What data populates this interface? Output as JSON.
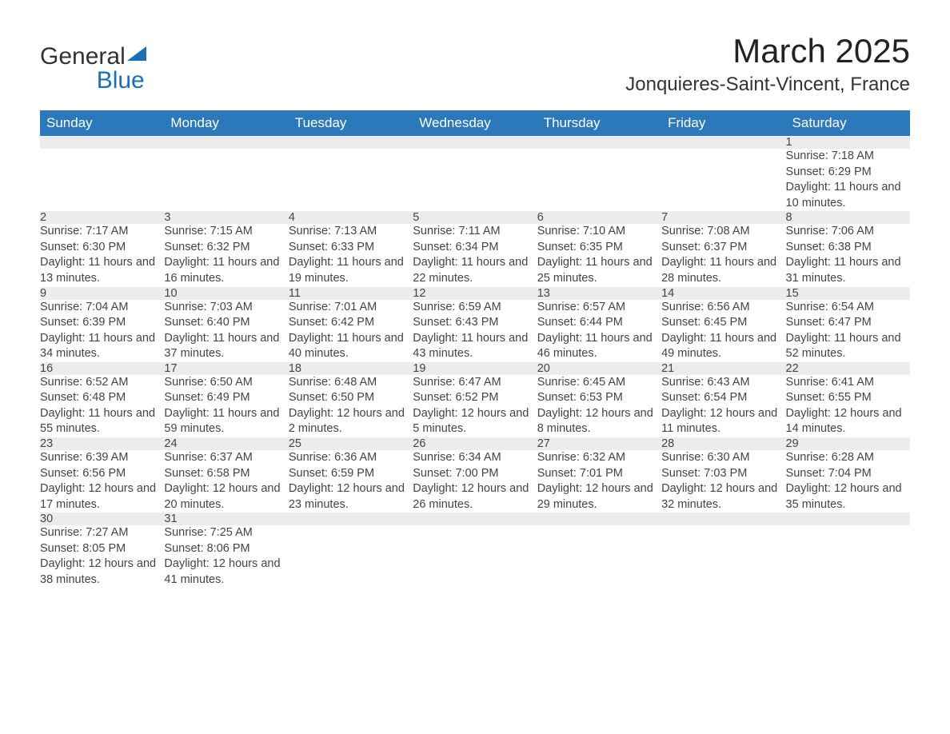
{
  "logo": {
    "text1": "General",
    "text2": "Blue"
  },
  "title": "March 2025",
  "subtitle": "Jonquieres-Saint-Vincent, France",
  "colors": {
    "header_bg": "#2b78bb",
    "header_text": "#ffffff",
    "row_border": "#2b78bb",
    "daynum_bg": "#ececec",
    "body_text": "#444444",
    "logo_dark": "#333333",
    "logo_blue": "#1a6fb7"
  },
  "typography": {
    "title_fontsize": 42,
    "subtitle_fontsize": 24,
    "header_fontsize": 17,
    "daynum_fontsize": 16,
    "body_fontsize": 14.5,
    "logo_fontsize": 30
  },
  "weekdays": [
    "Sunday",
    "Monday",
    "Tuesday",
    "Wednesday",
    "Thursday",
    "Friday",
    "Saturday"
  ],
  "weeks": [
    [
      null,
      null,
      null,
      null,
      null,
      null,
      {
        "n": "1",
        "sunrise": "7:18 AM",
        "sunset": "6:29 PM",
        "daylight": "11 hours and 10 minutes."
      }
    ],
    [
      {
        "n": "2",
        "sunrise": "7:17 AM",
        "sunset": "6:30 PM",
        "daylight": "11 hours and 13 minutes."
      },
      {
        "n": "3",
        "sunrise": "7:15 AM",
        "sunset": "6:32 PM",
        "daylight": "11 hours and 16 minutes."
      },
      {
        "n": "4",
        "sunrise": "7:13 AM",
        "sunset": "6:33 PM",
        "daylight": "11 hours and 19 minutes."
      },
      {
        "n": "5",
        "sunrise": "7:11 AM",
        "sunset": "6:34 PM",
        "daylight": "11 hours and 22 minutes."
      },
      {
        "n": "6",
        "sunrise": "7:10 AM",
        "sunset": "6:35 PM",
        "daylight": "11 hours and 25 minutes."
      },
      {
        "n": "7",
        "sunrise": "7:08 AM",
        "sunset": "6:37 PM",
        "daylight": "11 hours and 28 minutes."
      },
      {
        "n": "8",
        "sunrise": "7:06 AM",
        "sunset": "6:38 PM",
        "daylight": "11 hours and 31 minutes."
      }
    ],
    [
      {
        "n": "9",
        "sunrise": "7:04 AM",
        "sunset": "6:39 PM",
        "daylight": "11 hours and 34 minutes."
      },
      {
        "n": "10",
        "sunrise": "7:03 AM",
        "sunset": "6:40 PM",
        "daylight": "11 hours and 37 minutes."
      },
      {
        "n": "11",
        "sunrise": "7:01 AM",
        "sunset": "6:42 PM",
        "daylight": "11 hours and 40 minutes."
      },
      {
        "n": "12",
        "sunrise": "6:59 AM",
        "sunset": "6:43 PM",
        "daylight": "11 hours and 43 minutes."
      },
      {
        "n": "13",
        "sunrise": "6:57 AM",
        "sunset": "6:44 PM",
        "daylight": "11 hours and 46 minutes."
      },
      {
        "n": "14",
        "sunrise": "6:56 AM",
        "sunset": "6:45 PM",
        "daylight": "11 hours and 49 minutes."
      },
      {
        "n": "15",
        "sunrise": "6:54 AM",
        "sunset": "6:47 PM",
        "daylight": "11 hours and 52 minutes."
      }
    ],
    [
      {
        "n": "16",
        "sunrise": "6:52 AM",
        "sunset": "6:48 PM",
        "daylight": "11 hours and 55 minutes."
      },
      {
        "n": "17",
        "sunrise": "6:50 AM",
        "sunset": "6:49 PM",
        "daylight": "11 hours and 59 minutes."
      },
      {
        "n": "18",
        "sunrise": "6:48 AM",
        "sunset": "6:50 PM",
        "daylight": "12 hours and 2 minutes."
      },
      {
        "n": "19",
        "sunrise": "6:47 AM",
        "sunset": "6:52 PM",
        "daylight": "12 hours and 5 minutes."
      },
      {
        "n": "20",
        "sunrise": "6:45 AM",
        "sunset": "6:53 PM",
        "daylight": "12 hours and 8 minutes."
      },
      {
        "n": "21",
        "sunrise": "6:43 AM",
        "sunset": "6:54 PM",
        "daylight": "12 hours and 11 minutes."
      },
      {
        "n": "22",
        "sunrise": "6:41 AM",
        "sunset": "6:55 PM",
        "daylight": "12 hours and 14 minutes."
      }
    ],
    [
      {
        "n": "23",
        "sunrise": "6:39 AM",
        "sunset": "6:56 PM",
        "daylight": "12 hours and 17 minutes."
      },
      {
        "n": "24",
        "sunrise": "6:37 AM",
        "sunset": "6:58 PM",
        "daylight": "12 hours and 20 minutes."
      },
      {
        "n": "25",
        "sunrise": "6:36 AM",
        "sunset": "6:59 PM",
        "daylight": "12 hours and 23 minutes."
      },
      {
        "n": "26",
        "sunrise": "6:34 AM",
        "sunset": "7:00 PM",
        "daylight": "12 hours and 26 minutes."
      },
      {
        "n": "27",
        "sunrise": "6:32 AM",
        "sunset": "7:01 PM",
        "daylight": "12 hours and 29 minutes."
      },
      {
        "n": "28",
        "sunrise": "6:30 AM",
        "sunset": "7:03 PM",
        "daylight": "12 hours and 32 minutes."
      },
      {
        "n": "29",
        "sunrise": "6:28 AM",
        "sunset": "7:04 PM",
        "daylight": "12 hours and 35 minutes."
      }
    ],
    [
      {
        "n": "30",
        "sunrise": "7:27 AM",
        "sunset": "8:05 PM",
        "daylight": "12 hours and 38 minutes."
      },
      {
        "n": "31",
        "sunrise": "7:25 AM",
        "sunset": "8:06 PM",
        "daylight": "12 hours and 41 minutes."
      },
      null,
      null,
      null,
      null,
      null
    ]
  ],
  "labels": {
    "sunrise": "Sunrise:",
    "sunset": "Sunset:",
    "daylight": "Daylight:"
  }
}
